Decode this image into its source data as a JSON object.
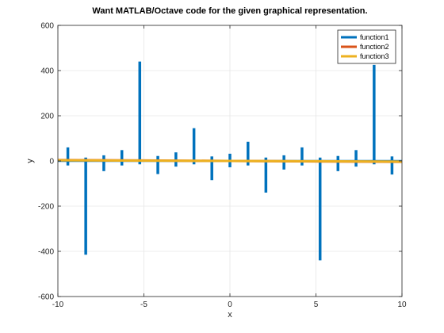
{
  "chart_data": {
    "type": "line",
    "title": "Want MATLAB/Octave code for the given graphical representation.",
    "xlabel": "x",
    "ylabel": "y",
    "xlim": [
      -10,
      10
    ],
    "ylim": [
      -600,
      600
    ],
    "xticks": [
      -10,
      -5,
      0,
      5,
      10
    ],
    "yticks": [
      -600,
      -400,
      -200,
      0,
      200,
      400,
      600
    ],
    "grid": true,
    "legend_position": "top-right",
    "series": [
      {
        "name": "function1",
        "color": "#0072BD",
        "spikes": [
          {
            "x": -9.42,
            "lo": -20,
            "hi": 60
          },
          {
            "x": -8.38,
            "lo": -415,
            "hi": 15
          },
          {
            "x": -7.33,
            "lo": -45,
            "hi": 25
          },
          {
            "x": -6.28,
            "lo": -20,
            "hi": 48
          },
          {
            "x": -5.24,
            "lo": -15,
            "hi": 440
          },
          {
            "x": -4.19,
            "lo": -58,
            "hi": 22
          },
          {
            "x": -3.14,
            "lo": -25,
            "hi": 38
          },
          {
            "x": -2.09,
            "lo": -15,
            "hi": 145
          },
          {
            "x": -1.05,
            "lo": -85,
            "hi": 20
          },
          {
            "x": 0.0,
            "lo": -28,
            "hi": 32
          },
          {
            "x": 1.05,
            "lo": -20,
            "hi": 85
          },
          {
            "x": 2.09,
            "lo": -140,
            "hi": 15
          },
          {
            "x": 3.14,
            "lo": -38,
            "hi": 25
          },
          {
            "x": 4.19,
            "lo": -20,
            "hi": 60
          },
          {
            "x": 5.24,
            "lo": -440,
            "hi": 15
          },
          {
            "x": 6.28,
            "lo": -45,
            "hi": 22
          },
          {
            "x": 7.33,
            "lo": -25,
            "hi": 48
          },
          {
            "x": 8.38,
            "lo": -15,
            "hi": 425
          },
          {
            "x": 9.42,
            "lo": -60,
            "hi": 20
          }
        ]
      },
      {
        "name": "function2",
        "color": "#D95319",
        "x": [
          -10,
          -5,
          0,
          5,
          10
        ],
        "y": [
          4,
          2,
          0,
          -2,
          -4
        ]
      },
      {
        "name": "function3",
        "color": "#EDB120",
        "x": [
          -10,
          -5,
          0,
          5,
          10
        ],
        "y": [
          3,
          1.5,
          0,
          -1.5,
          -3
        ]
      }
    ]
  }
}
